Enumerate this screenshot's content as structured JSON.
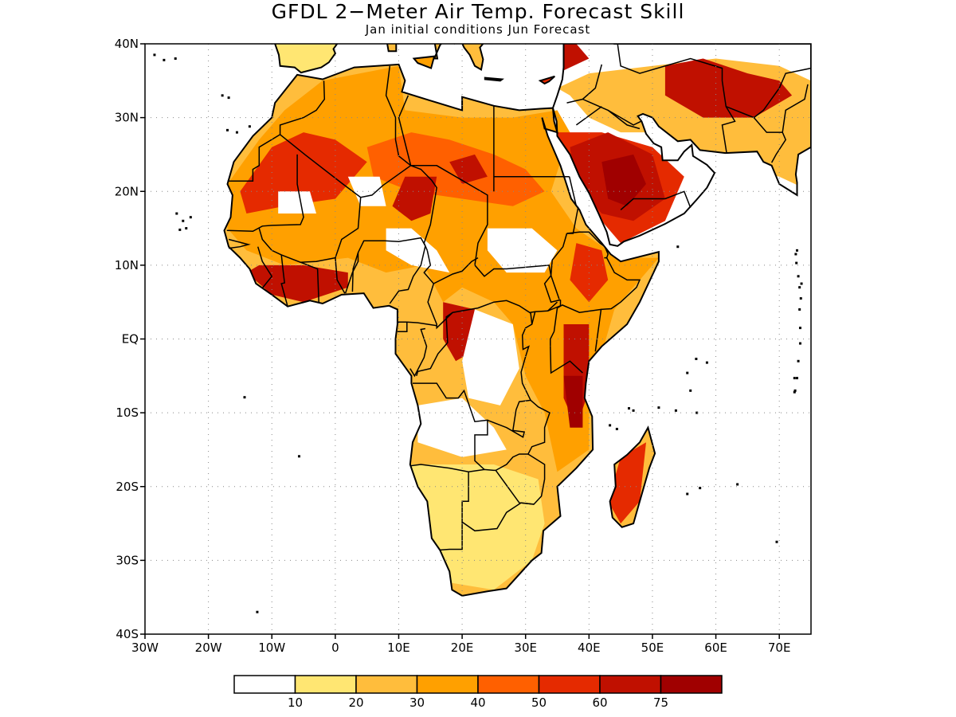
{
  "title": "GFDL 2−Meter Air Temp. Forecast Skill",
  "subtitle": "Jan initial conditions   Jun Forecast",
  "map": {
    "lon_range": [
      -30,
      75
    ],
    "lat_range": [
      -40,
      40
    ],
    "lon_ticks": [
      {
        "value": -30,
        "label": "30W"
      },
      {
        "value": -20,
        "label": "20W"
      },
      {
        "value": -10,
        "label": "10W"
      },
      {
        "value": 0,
        "label": "0"
      },
      {
        "value": 10,
        "label": "10E"
      },
      {
        "value": 20,
        "label": "20E"
      },
      {
        "value": 30,
        "label": "30E"
      },
      {
        "value": 40,
        "label": "40E"
      },
      {
        "value": 50,
        "label": "50E"
      },
      {
        "value": 60,
        "label": "60E"
      },
      {
        "value": 70,
        "label": "70E"
      }
    ],
    "lat_ticks": [
      {
        "value": 40,
        "label": "40N"
      },
      {
        "value": 30,
        "label": "30N"
      },
      {
        "value": 20,
        "label": "20N"
      },
      {
        "value": 10,
        "label": "10N"
      },
      {
        "value": 0,
        "label": "EQ"
      },
      {
        "value": -10,
        "label": "10S"
      },
      {
        "value": -20,
        "label": "20S"
      },
      {
        "value": -30,
        "label": "30S"
      },
      {
        "value": -40,
        "label": "40S"
      }
    ],
    "grid": "dotted"
  },
  "colorbar": {
    "colors": [
      "#ffffff",
      "#ffe672",
      "#ffbd3c",
      "#ffa000",
      "#ff6000",
      "#e52a00",
      "#c01000",
      "#a00000"
    ],
    "labels": [
      "10",
      "20",
      "30",
      "40",
      "50",
      "60",
      "75"
    ]
  },
  "skill_regions": [
    {
      "level": 3,
      "polygon": [
        [
          -17,
          21
        ],
        [
          -12,
          27
        ],
        [
          -8,
          31
        ],
        [
          -2,
          35
        ],
        [
          10,
          37
        ],
        [
          11,
          31
        ],
        [
          20,
          30
        ],
        [
          28,
          30
        ],
        [
          35,
          31
        ],
        [
          37,
          28
        ],
        [
          34,
          20
        ],
        [
          38,
          15
        ],
        [
          43,
          12
        ],
        [
          48,
          11
        ],
        [
          51,
          11
        ],
        [
          44,
          4
        ],
        [
          42,
          -2
        ],
        [
          40,
          -9
        ],
        [
          40,
          -15
        ],
        [
          35,
          -18
        ],
        [
          33,
          -10
        ],
        [
          30,
          -5
        ],
        [
          28,
          2
        ],
        [
          25,
          5
        ],
        [
          20,
          7
        ],
        [
          17,
          5
        ],
        [
          14,
          10
        ],
        [
          8,
          9
        ],
        [
          2,
          11
        ],
        [
          -8,
          10
        ],
        [
          -14,
          12
        ],
        [
          -17,
          15
        ]
      ]
    },
    {
      "level": 1,
      "polygon": [
        [
          12,
          -17
        ],
        [
          20,
          -17
        ],
        [
          25,
          -17
        ],
        [
          32,
          -19
        ],
        [
          33,
          -25
        ],
        [
          31,
          -30
        ],
        [
          25,
          -34
        ],
        [
          18,
          -33
        ],
        [
          15,
          -28
        ],
        [
          12,
          -20
        ]
      ]
    },
    {
      "level": 2,
      "polygon": [
        [
          35,
          34
        ],
        [
          40,
          36
        ],
        [
          50,
          37
        ],
        [
          60,
          38
        ],
        [
          70,
          37
        ],
        [
          75,
          35
        ],
        [
          75,
          20
        ],
        [
          70,
          22
        ],
        [
          60,
          24
        ],
        [
          56,
          26
        ],
        [
          50,
          28
        ],
        [
          45,
          28
        ],
        [
          40,
          30
        ],
        [
          37,
          33
        ]
      ]
    },
    {
      "level": 5,
      "polygon": [
        [
          35,
          28
        ],
        [
          42,
          28
        ],
        [
          50,
          26
        ],
        [
          55,
          22
        ],
        [
          52,
          16
        ],
        [
          45,
          13
        ],
        [
          40,
          18
        ],
        [
          36,
          24
        ]
      ]
    },
    {
      "level": 5,
      "polygon": [
        [
          -15,
          20
        ],
        [
          -10,
          26
        ],
        [
          -5,
          28
        ],
        [
          0,
          27
        ],
        [
          5,
          24
        ],
        [
          0,
          19
        ],
        [
          -8,
          18
        ],
        [
          -14,
          17
        ]
      ]
    },
    {
      "level": 4,
      "polygon": [
        [
          5,
          26
        ],
        [
          12,
          28
        ],
        [
          18,
          27
        ],
        [
          25,
          25
        ],
        [
          30,
          23
        ],
        [
          33,
          20
        ],
        [
          28,
          18
        ],
        [
          20,
          19
        ],
        [
          12,
          20
        ],
        [
          6,
          22
        ]
      ]
    },
    {
      "level": 6,
      "polygon": [
        [
          11,
          22
        ],
        [
          16,
          22
        ],
        [
          15,
          17
        ],
        [
          12,
          16
        ],
        [
          9,
          18
        ]
      ]
    },
    {
      "level": 6,
      "polygon": [
        [
          18,
          24
        ],
        [
          22,
          25
        ],
        [
          24,
          22
        ],
        [
          20,
          21
        ]
      ]
    },
    {
      "level": 6,
      "polygon": [
        [
          37,
          26
        ],
        [
          43,
          28
        ],
        [
          50,
          25
        ],
        [
          52,
          19
        ],
        [
          47,
          16
        ],
        [
          42,
          17
        ],
        [
          38,
          21
        ]
      ]
    },
    {
      "level": 7,
      "polygon": [
        [
          42,
          24
        ],
        [
          47,
          25
        ],
        [
          49,
          21
        ],
        [
          46,
          18
        ],
        [
          43,
          19
        ]
      ]
    },
    {
      "level": 6,
      "polygon": [
        [
          -12,
          10
        ],
        [
          -5,
          10
        ],
        [
          2,
          9
        ],
        [
          2,
          7
        ],
        [
          -5,
          5
        ],
        [
          -10,
          6
        ],
        [
          -14,
          9
        ]
      ]
    },
    {
      "level": 6,
      "polygon": [
        [
          36,
          2
        ],
        [
          40,
          2
        ],
        [
          40,
          -7
        ],
        [
          38,
          -12
        ],
        [
          36,
          -8
        ]
      ]
    },
    {
      "level": 7,
      "polygon": [
        [
          36,
          -5
        ],
        [
          39,
          -5
        ],
        [
          39,
          -12
        ],
        [
          37,
          -12
        ]
      ]
    },
    {
      "level": 6,
      "polygon": [
        [
          17,
          5
        ],
        [
          22,
          4
        ],
        [
          23,
          -1
        ],
        [
          19,
          -3
        ],
        [
          17,
          0
        ]
      ]
    },
    {
      "level": 5,
      "polygon": [
        [
          38,
          13
        ],
        [
          42,
          12
        ],
        [
          43,
          8
        ],
        [
          40,
          5
        ],
        [
          37,
          8
        ]
      ]
    },
    {
      "level": 5,
      "polygon": [
        [
          45,
          -16
        ],
        [
          49,
          -14
        ],
        [
          48,
          -22
        ],
        [
          45,
          -25
        ],
        [
          43,
          -22
        ]
      ]
    },
    {
      "level": 6,
      "polygon": [
        [
          52,
          37
        ],
        [
          58,
          38
        ],
        [
          65,
          36
        ],
        [
          70,
          35
        ],
        [
          72,
          33
        ],
        [
          66,
          30
        ],
        [
          58,
          30
        ],
        [
          52,
          33
        ]
      ]
    },
    {
      "level": 6,
      "polygon": [
        [
          30,
          40
        ],
        [
          38,
          40
        ],
        [
          40,
          38
        ],
        [
          35,
          36
        ],
        [
          30,
          37
        ]
      ]
    },
    {
      "level": 0,
      "polygon": [
        [
          8,
          15
        ],
        [
          12,
          15
        ],
        [
          16,
          12
        ],
        [
          18,
          9
        ],
        [
          12,
          10
        ],
        [
          8,
          12
        ]
      ]
    },
    {
      "level": 0,
      "polygon": [
        [
          24,
          15
        ],
        [
          31,
          15
        ],
        [
          35,
          12
        ],
        [
          33,
          9
        ],
        [
          27,
          9
        ],
        [
          24,
          12
        ]
      ]
    },
    {
      "level": 0,
      "polygon": [
        [
          22,
          4
        ],
        [
          28,
          2
        ],
        [
          29,
          -4
        ],
        [
          26,
          -9
        ],
        [
          21,
          -8
        ],
        [
          20,
          -3
        ]
      ]
    },
    {
      "level": 0,
      "polygon": [
        [
          2,
          22
        ],
        [
          7,
          22
        ],
        [
          8,
          18
        ],
        [
          4,
          18
        ]
      ]
    },
    {
      "level": 0,
      "polygon": [
        [
          13,
          -9
        ],
        [
          20,
          -8
        ],
        [
          25,
          -12
        ],
        [
          27,
          -15
        ],
        [
          20,
          -16
        ],
        [
          13,
          -14
        ]
      ]
    },
    {
      "level": 0,
      "polygon": [
        [
          -9,
          20
        ],
        [
          -4,
          20
        ],
        [
          -3,
          17
        ],
        [
          -9,
          17
        ]
      ]
    }
  ]
}
